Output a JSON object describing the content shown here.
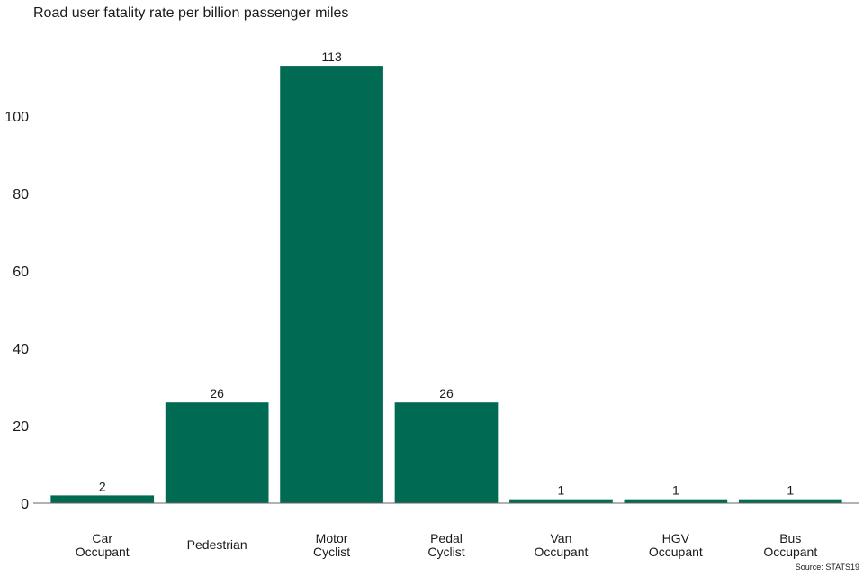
{
  "chart_data": {
    "type": "bar",
    "title": "Road user fatality rate per billion passenger miles",
    "categories": [
      "Car\nOccupant",
      "Pedestrian",
      "Motor\nCyclist",
      "Pedal\nCyclist",
      "Van\nOccupant",
      "HGV\nOccupant",
      "Bus\nOccupant"
    ],
    "values": [
      2,
      26,
      113,
      26,
      1,
      1,
      1
    ],
    "data_labels": [
      "2",
      "26",
      "113",
      "26",
      "1",
      "1",
      "1"
    ],
    "xlabel": "",
    "ylabel": "",
    "ylim": [
      0,
      120
    ],
    "yticks": [
      0,
      20,
      40,
      60,
      80,
      100
    ],
    "grid": false,
    "bar_color": "#006a52",
    "axis_color": "#666666",
    "source": "Source: STATS19"
  }
}
